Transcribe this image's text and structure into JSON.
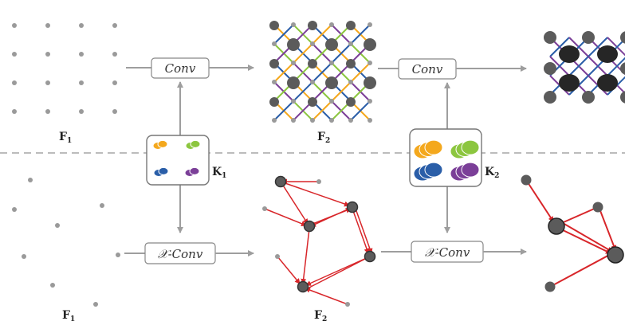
{
  "colors": {
    "arrow": "#9e9e9e",
    "divider": "#a6a6a6",
    "point": "#9a9a9a",
    "node_dark": "#5b5b5b",
    "node_black": "#262626",
    "edge_red": "#d8262a",
    "edge_orange": "#f4a81d",
    "edge_green": "#8cc63f",
    "edge_blue": "#2a5ea8",
    "edge_purple": "#7b3f98",
    "kernel_box_border": "#777777"
  },
  "top_row": {
    "input_label": {
      "main": "F",
      "sub": "1"
    },
    "op1_label": "Conv",
    "output_label": {
      "main": "F",
      "sub": "2"
    },
    "op2_label": "Conv"
  },
  "bottom_row": {
    "input_label": {
      "main": "F",
      "sub": "1"
    },
    "op1_label": "𝒳-Conv",
    "output_label": {
      "main": "F",
      "sub": "2"
    },
    "op2_label": "𝒳-Conv"
  },
  "kernels": {
    "k1": {
      "main": "K",
      "sub": "1"
    },
    "k2": {
      "main": "K",
      "sub": "2"
    }
  },
  "kernel_colors": [
    "orange",
    "green",
    "blue",
    "purple"
  ]
}
